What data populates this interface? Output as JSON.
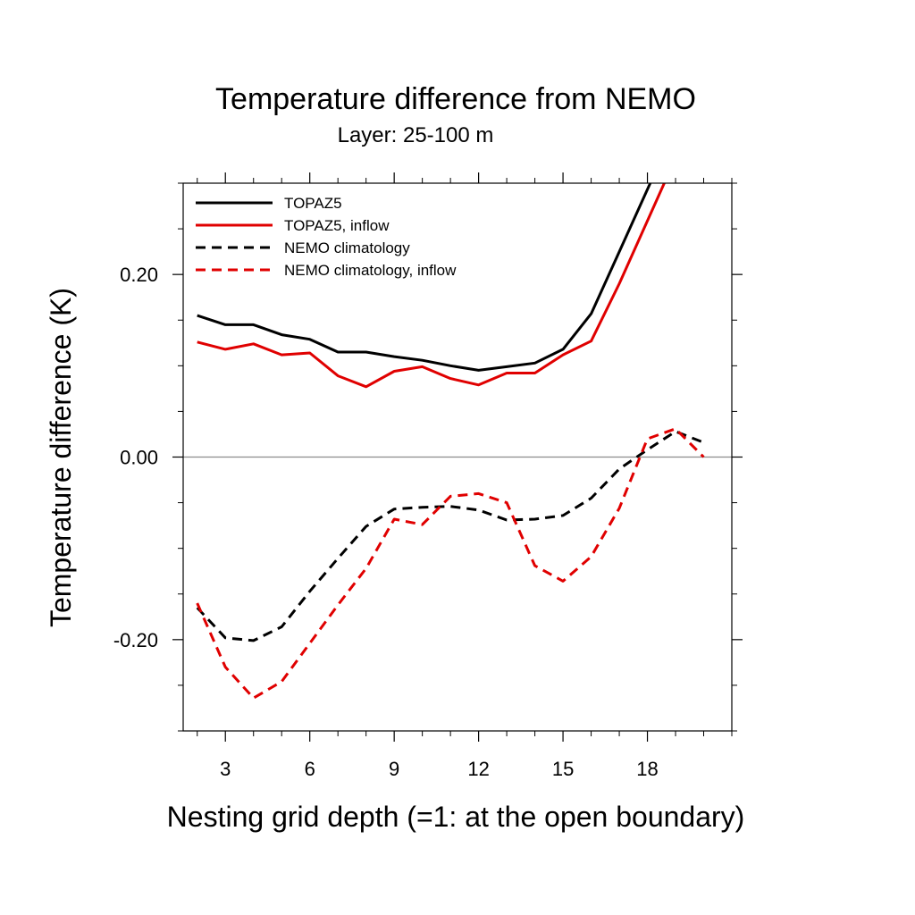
{
  "chart_data": {
    "type": "line",
    "title": "Temperature difference from NEMO",
    "subtitle": "Layer: 25-100 m",
    "xlabel": "Nesting grid depth (=1: at the open boundary)",
    "ylabel": "Temperature difference (K)",
    "xlim": [
      1.5,
      21.0
    ],
    "ylim": [
      -0.3,
      0.3
    ],
    "xticks": [
      3,
      6,
      9,
      12,
      15,
      18
    ],
    "xtick_labels": [
      "3",
      "6",
      "9",
      "12",
      "15",
      "18"
    ],
    "yticks": [
      -0.2,
      0.0,
      0.2
    ],
    "ytick_labels": [
      "-0.20",
      "0.00",
      "0.20"
    ],
    "reference_line": 0.0,
    "legend_position": "top-left",
    "series": [
      {
        "name": "TOPAZ5",
        "color": "#000000",
        "dash": "solid",
        "x": [
          2,
          3,
          4,
          5,
          6,
          7,
          8,
          9,
          10,
          11,
          12,
          13,
          14,
          15,
          16,
          17,
          18.1
        ],
        "y": [
          0.155,
          0.145,
          0.145,
          0.134,
          0.129,
          0.115,
          0.115,
          0.11,
          0.106,
          0.1,
          0.095,
          0.099,
          0.103,
          0.118,
          0.157,
          0.225,
          0.3
        ]
      },
      {
        "name": "TOPAZ5, inflow",
        "color": "#e00000",
        "dash": "solid",
        "x": [
          2,
          3,
          4,
          5,
          6,
          7,
          8,
          9,
          10,
          11,
          12,
          13,
          14,
          15,
          16,
          17,
          18.6
        ],
        "y": [
          0.126,
          0.118,
          0.124,
          0.112,
          0.114,
          0.089,
          0.077,
          0.094,
          0.099,
          0.086,
          0.079,
          0.092,
          0.092,
          0.112,
          0.127,
          0.19,
          0.3
        ]
      },
      {
        "name": "NEMO climatology",
        "color": "#000000",
        "dash": "dashed",
        "x": [
          2,
          3,
          4,
          5,
          6,
          7,
          8,
          9,
          10,
          11,
          12,
          13,
          14,
          15,
          16,
          17,
          18,
          19,
          20
        ],
        "y": [
          -0.165,
          -0.198,
          -0.201,
          -0.186,
          -0.147,
          -0.111,
          -0.076,
          -0.057,
          -0.055,
          -0.054,
          -0.058,
          -0.069,
          -0.068,
          -0.064,
          -0.045,
          -0.013,
          0.008,
          0.028,
          0.016
        ]
      },
      {
        "name": "NEMO climatology, inflow",
        "color": "#e00000",
        "dash": "dashed",
        "x": [
          2,
          3,
          4,
          5,
          6,
          7,
          8,
          9,
          10,
          11,
          12,
          13,
          14,
          15,
          16,
          17,
          18,
          19,
          20
        ],
        "y": [
          -0.16,
          -0.23,
          -0.264,
          -0.246,
          -0.204,
          -0.162,
          -0.122,
          -0.068,
          -0.074,
          -0.043,
          -0.04,
          -0.05,
          -0.119,
          -0.136,
          -0.109,
          -0.056,
          0.02,
          0.031,
          0.0
        ]
      }
    ]
  }
}
